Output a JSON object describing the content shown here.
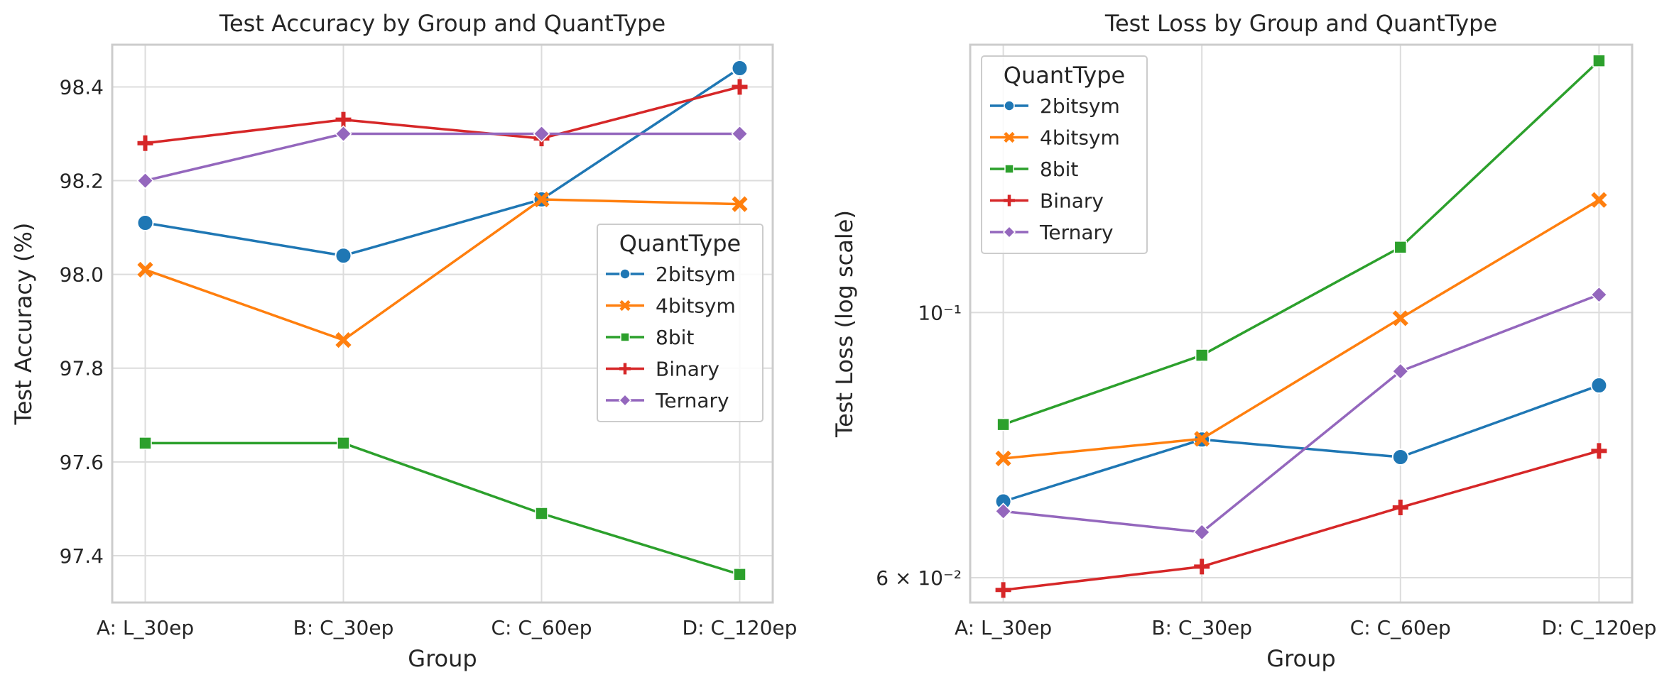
{
  "chart_data": [
    {
      "type": "line",
      "title": "Test Accuracy by Group and QuantType",
      "xlabel": "Group",
      "ylabel": "Test Accuracy (%)",
      "categories": [
        "A: L_30ep",
        "B: C_30ep",
        "C: C_60ep",
        "D: C_120ep"
      ],
      "ylim": [
        97.3,
        98.49
      ],
      "yscale": "linear",
      "yticks": [
        97.4,
        97.6,
        97.8,
        98.0,
        98.2,
        98.4
      ],
      "yticklabels": [
        "97.4",
        "97.6",
        "97.8",
        "98.0",
        "98.2",
        "98.4"
      ],
      "grid": true,
      "legend": {
        "title": "QuantType",
        "placement": "center-right"
      },
      "series": [
        {
          "name": "2bitsym",
          "color": "#1f77b4",
          "marker": "circle",
          "values": [
            98.11,
            98.04,
            98.16,
            98.44
          ]
        },
        {
          "name": "4bitsym",
          "color": "#ff7f0e",
          "marker": "x",
          "values": [
            98.01,
            97.86,
            98.16,
            98.15
          ]
        },
        {
          "name": "8bit",
          "color": "#2ca02c",
          "marker": "square",
          "values": [
            97.64,
            97.64,
            97.49,
            97.36
          ]
        },
        {
          "name": "Binary",
          "color": "#d62728",
          "marker": "plus",
          "values": [
            98.28,
            98.33,
            98.29,
            98.4
          ]
        },
        {
          "name": "Ternary",
          "color": "#9467bd",
          "marker": "diamond",
          "values": [
            98.2,
            98.3,
            98.3,
            98.3
          ]
        }
      ]
    },
    {
      "type": "line",
      "title": "Test Loss by Group and QuantType",
      "xlabel": "Group",
      "ylabel": "Test Loss (log scale)",
      "categories": [
        "A: L_30ep",
        "B: C_30ep",
        "C: C_60ep",
        "D: C_120ep"
      ],
      "ylim": [
        0.0572,
        0.1675
      ],
      "yscale": "log",
      "yticks": [
        0.06,
        0.1
      ],
      "yticklabels": [
        "6 × 10⁻²",
        "10⁻¹"
      ],
      "grid": true,
      "legend": {
        "title": "QuantType",
        "placement": "top-left"
      },
      "series": [
        {
          "name": "2bitsym",
          "color": "#1f77b4",
          "marker": "circle",
          "values": [
            0.0695,
            0.0783,
            0.0757,
            0.0869
          ]
        },
        {
          "name": "4bitsym",
          "color": "#ff7f0e",
          "marker": "x",
          "values": [
            0.0755,
            0.0784,
            0.0989,
            0.1242
          ]
        },
        {
          "name": "8bit",
          "color": "#2ca02c",
          "marker": "square",
          "values": [
            0.0806,
            0.0921,
            0.1134,
            0.1624
          ]
        },
        {
          "name": "Binary",
          "color": "#d62728",
          "marker": "plus",
          "values": [
            0.0586,
            0.0613,
            0.0687,
            0.0766
          ]
        },
        {
          "name": "Ternary",
          "color": "#9467bd",
          "marker": "diamond",
          "values": [
            0.0682,
            0.0655,
            0.0893,
            0.1035
          ]
        }
      ]
    }
  ]
}
